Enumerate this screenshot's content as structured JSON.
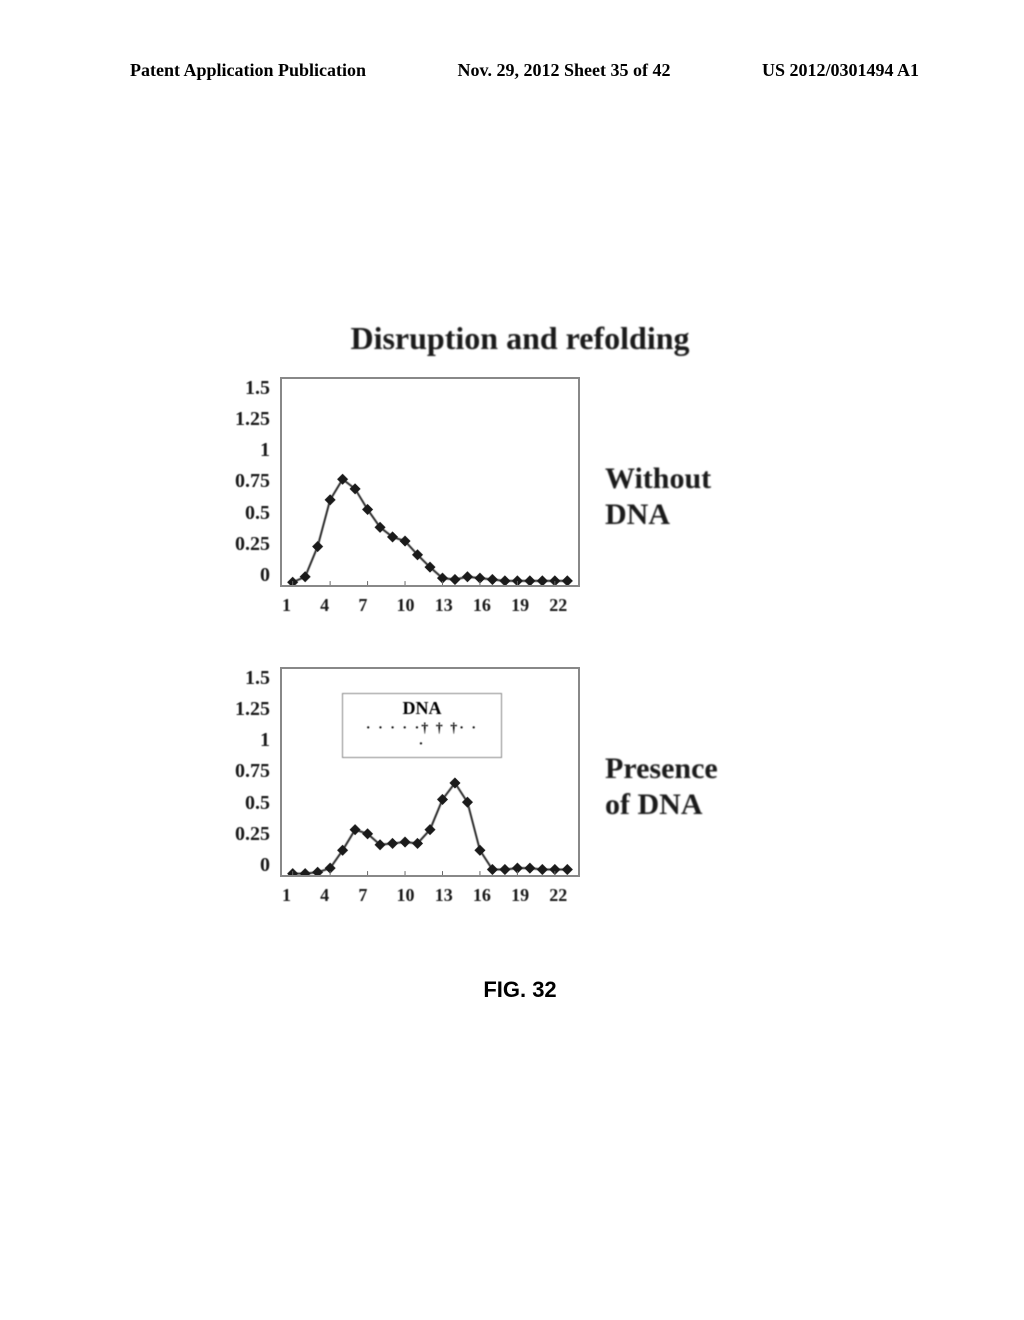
{
  "header": {
    "left": "Patent Application Publication",
    "center": "Nov. 29, 2012  Sheet 35 of 42",
    "right": "US 2012/0301494 A1"
  },
  "main_title": "Disruption and refolding",
  "figure_caption": "FIG. 32",
  "chart1": {
    "type": "line",
    "side_label": "Without\nDNA",
    "ylim": [
      0,
      1.5
    ],
    "yticks": [
      1.5,
      1.25,
      1,
      0.75,
      0.5,
      0.25,
      0
    ],
    "xlim": [
      1,
      23
    ],
    "xticks": [
      1,
      4,
      7,
      10,
      13,
      16,
      19,
      22
    ],
    "background_color": "#ffffff",
    "border_color": "#888888",
    "line_color": "#2a2a2a",
    "marker_color": "#1a1a1a",
    "marker_size": 4,
    "line_width": 2,
    "data": {
      "x": [
        1,
        2,
        3,
        4,
        5,
        6,
        7,
        8,
        9,
        10,
        11,
        12,
        13,
        14,
        15,
        16,
        17,
        18,
        19,
        20,
        21,
        22,
        23
      ],
      "y": [
        0.02,
        0.06,
        0.28,
        0.62,
        0.77,
        0.7,
        0.55,
        0.42,
        0.35,
        0.32,
        0.22,
        0.13,
        0.05,
        0.04,
        0.06,
        0.05,
        0.04,
        0.03,
        0.03,
        0.03,
        0.03,
        0.03,
        0.03
      ]
    }
  },
  "chart2": {
    "type": "line",
    "side_label": "Presence\nof DNA",
    "ylim": [
      0,
      1.5
    ],
    "yticks": [
      1.5,
      1.25,
      1,
      0.75,
      0.5,
      0.25,
      0
    ],
    "xlim": [
      1,
      23
    ],
    "xticks": [
      1,
      4,
      7,
      10,
      13,
      16,
      19,
      22
    ],
    "background_color": "#ffffff",
    "border_color": "#888888",
    "line_color": "#2a2a2a",
    "marker_color": "#1a1a1a",
    "marker_size": 4,
    "line_width": 2,
    "dna_box_label": "DNA",
    "dna_box_dots": "· · · · ·† † †· · ·",
    "data": {
      "x": [
        1,
        2,
        3,
        4,
        5,
        6,
        7,
        8,
        9,
        10,
        11,
        12,
        13,
        14,
        15,
        16,
        17,
        18,
        19,
        20,
        21,
        22,
        23
      ],
      "y": [
        0.01,
        0.01,
        0.02,
        0.05,
        0.18,
        0.33,
        0.3,
        0.22,
        0.23,
        0.24,
        0.23,
        0.33,
        0.55,
        0.67,
        0.53,
        0.18,
        0.04,
        0.04,
        0.05,
        0.05,
        0.04,
        0.04,
        0.04
      ]
    }
  }
}
